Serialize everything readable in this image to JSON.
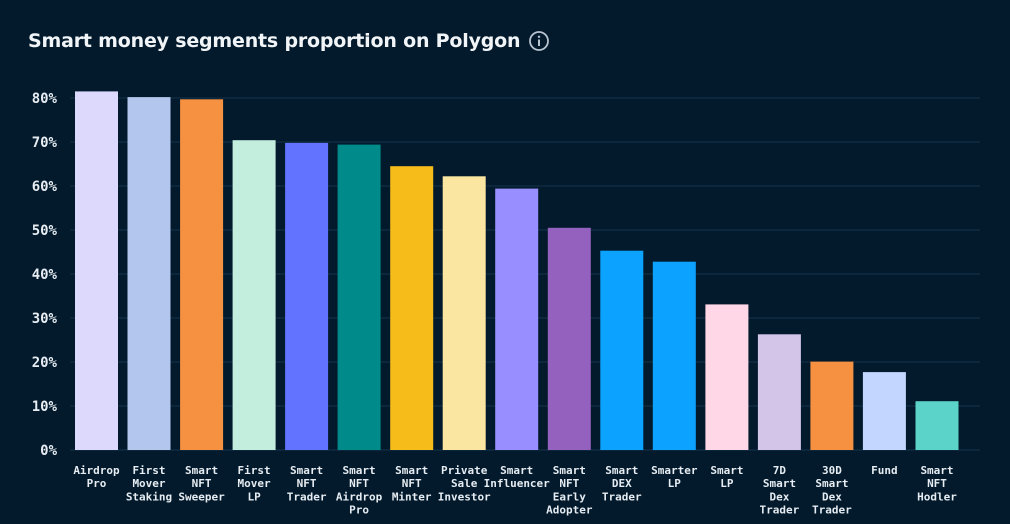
{
  "chart_data": {
    "type": "bar",
    "title": "Smart money segments proportion on Polygon",
    "xlabel": "",
    "ylabel": "",
    "ylim": [
      0,
      80
    ],
    "ytick_values": [
      0,
      10,
      20,
      30,
      40,
      50,
      60,
      70,
      80
    ],
    "ytick_labels": [
      "0%",
      "10%",
      "20%",
      "30%",
      "40%",
      "50%",
      "60%",
      "70%",
      "80%"
    ],
    "grid": true,
    "categories": [
      [
        "Airdrop",
        "Pro"
      ],
      [
        "First",
        "Mover",
        "Staking"
      ],
      [
        "Smart",
        "NFT",
        "Sweeper"
      ],
      [
        "First",
        "Mover",
        "LP"
      ],
      [
        "Smart",
        "NFT",
        "Trader"
      ],
      [
        "Smart",
        "NFT",
        "Airdrop",
        "Pro"
      ],
      [
        "Smart",
        "NFT",
        "Minter"
      ],
      [
        "Private",
        "Sale",
        "Investor"
      ],
      [
        "Smart",
        "Influencer"
      ],
      [
        "Smart",
        "NFT",
        "Early",
        "Adopter"
      ],
      [
        "Smart",
        "DEX",
        "Trader"
      ],
      [
        "Smarter",
        "LP"
      ],
      [
        "Smart",
        "LP"
      ],
      [
        "7D",
        "Smart",
        "Dex",
        "Trader"
      ],
      [
        "30D",
        "Smart",
        "Dex",
        "Trader"
      ],
      [
        "Fund"
      ],
      [
        "Smart",
        "NFT",
        "Hodler"
      ]
    ],
    "values": [
      81.5,
      80.2,
      79.7,
      70.4,
      69.8,
      69.4,
      64.5,
      62.2,
      59.4,
      50.5,
      45.3,
      42.8,
      33.1,
      26.3,
      20.1,
      17.7,
      11.1
    ],
    "colors": [
      "#dcd9fd",
      "#b3c7ee",
      "#f59140",
      "#c3eedd",
      "#6273ff",
      "#018a8a",
      "#f6bc1a",
      "#fae5a1",
      "#998eff",
      "#9561bf",
      "#0ba3ff",
      "#0ba3ff",
      "#ffd7e6",
      "#d2c5e8",
      "#f59140",
      "#c2d6ff",
      "#5bd3c9"
    ]
  },
  "info_icon": "info-circle-icon"
}
